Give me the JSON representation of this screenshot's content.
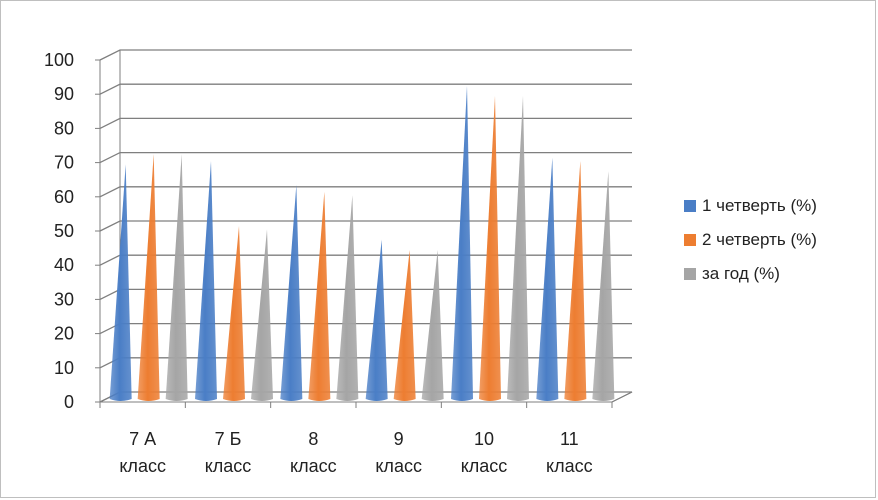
{
  "chart_data": {
    "type": "bar",
    "title": "",
    "xlabel": "",
    "ylabel": "",
    "ylim": [
      0,
      100
    ],
    "yticks": [
      "0",
      "10",
      "20",
      "30",
      "40",
      "50",
      "60",
      "70",
      "80",
      "90",
      "100"
    ],
    "categories": [
      [
        "7 А",
        "класс"
      ],
      [
        "7 Б",
        "класс"
      ],
      [
        "8",
        "класс"
      ],
      [
        "9",
        "класс"
      ],
      [
        "10",
        "класс"
      ],
      [
        "11",
        "класс"
      ]
    ],
    "series": [
      {
        "name": "1 четверть (%)",
        "color": "#4a7ec6",
        "values": [
          68,
          69,
          62,
          46,
          91,
          70
        ]
      },
      {
        "name": "2 четверть (%)",
        "color": "#ed7d31",
        "values": [
          71,
          50,
          60,
          43,
          88,
          69
        ]
      },
      {
        "name": "за год (%)",
        "color": "#a5a5a5",
        "values": [
          71,
          49,
          59,
          43,
          88,
          66
        ]
      }
    ],
    "legend_position": "right",
    "grid": true,
    "style": "3d-cone"
  }
}
